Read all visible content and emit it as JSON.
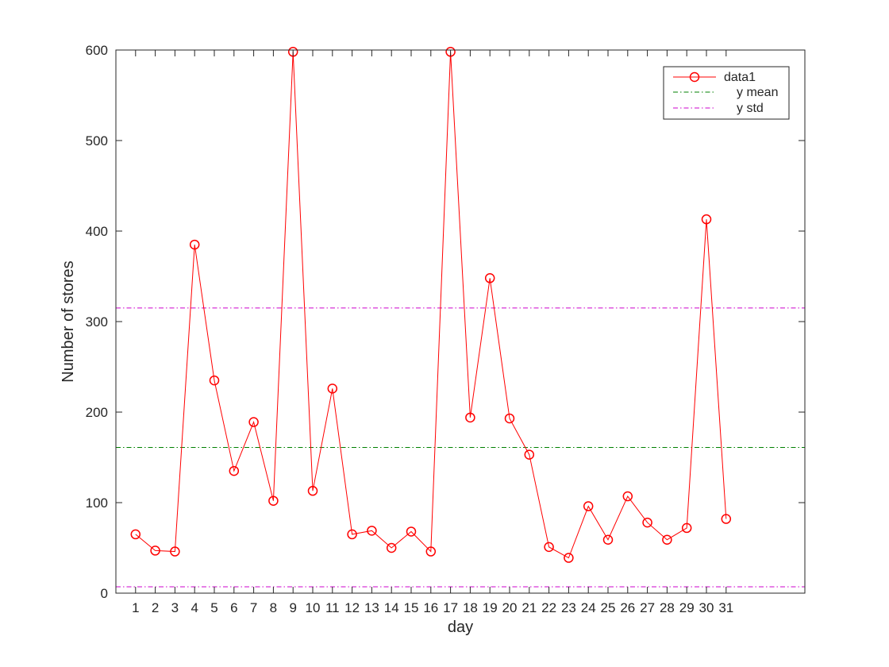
{
  "chart_data": {
    "type": "line",
    "xlabel": "day",
    "ylabel": "Number of stores",
    "xlim": [
      0,
      35
    ],
    "ylim": [
      0,
      600
    ],
    "x_ticks": [
      1,
      2,
      3,
      4,
      5,
      6,
      7,
      8,
      9,
      10,
      11,
      12,
      13,
      14,
      15,
      16,
      17,
      18,
      19,
      20,
      21,
      22,
      23,
      24,
      25,
      26,
      27,
      28,
      29,
      30,
      31
    ],
    "y_ticks": [
      0,
      100,
      200,
      300,
      400,
      500,
      600
    ],
    "grid": false,
    "legend_position": "top-right",
    "series": [
      {
        "name": "data1",
        "color": "#ff0000",
        "marker": "circle",
        "x": [
          1,
          2,
          3,
          4,
          5,
          6,
          7,
          8,
          9,
          10,
          11,
          12,
          13,
          14,
          15,
          16,
          17,
          18,
          19,
          20,
          21,
          22,
          23,
          24,
          25,
          26,
          27,
          28,
          29,
          30,
          31
        ],
        "values": [
          65,
          47,
          46,
          385,
          235,
          135,
          189,
          102,
          598,
          113,
          226,
          65,
          69,
          50,
          68,
          46,
          598,
          194,
          348,
          193,
          153,
          51,
          39,
          96,
          59,
          107,
          78,
          59,
          72,
          413,
          82
        ]
      }
    ],
    "hlines": [
      {
        "name": "y mean",
        "value": 161,
        "color": "#008000",
        "style": "dash-dot"
      },
      {
        "name": "y std",
        "value": 315,
        "color": "#cc00cc",
        "style": "dash-dot"
      },
      {
        "name": "",
        "value": 7,
        "color": "#cc00cc",
        "style": "dash-dot"
      }
    ],
    "legend": [
      "data1",
      "y mean",
      "y std"
    ]
  }
}
